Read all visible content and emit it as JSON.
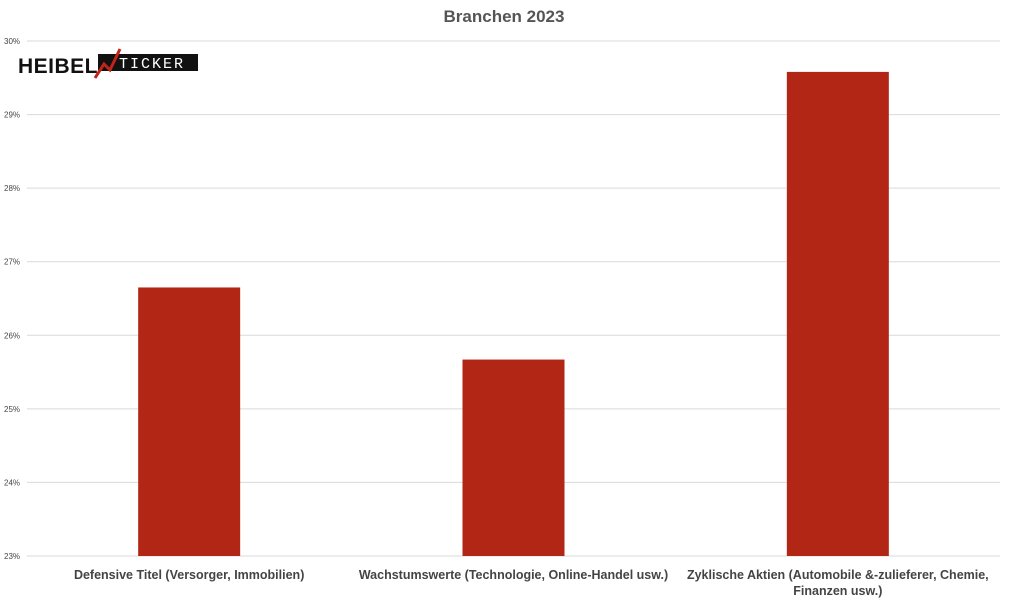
{
  "logo": {
    "part1": "HEIBEL",
    "part2": "TICKER"
  },
  "colors": {
    "bar": "#b12615",
    "grid": "#d9d9d9",
    "text": "#444444",
    "logo_accent": "#c0241a"
  },
  "chart_data": {
    "type": "bar",
    "title": "Branchen 2023",
    "xlabel": "",
    "ylabel": "",
    "categories": [
      "Defensive Titel (Versorger, Immobilien)",
      "Wachstumswerte (Technologie, Online-Handel usw.)",
      "Zyklische Aktien (Automobile &-zulieferer, Chemie, Finanzen usw.)"
    ],
    "category_lines": [
      [
        "Defensive Titel (Versorger, Immobilien)"
      ],
      [
        "Wachstumswerte (Technologie, Online-Handel usw.)"
      ],
      [
        "Zyklische Aktien (Automobile &-zulieferer, Chemie,",
        "Finanzen usw.)"
      ]
    ],
    "values": [
      26.65,
      25.67,
      29.58
    ],
    "ylim": [
      23,
      30
    ],
    "yticks": [
      "23%",
      "24%",
      "25%",
      "26%",
      "27%",
      "28%",
      "29%",
      "30%"
    ],
    "grid": true,
    "legend": "none"
  }
}
